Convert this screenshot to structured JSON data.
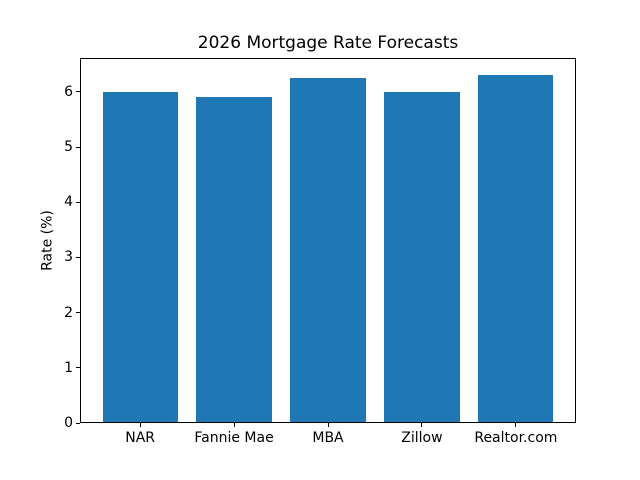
{
  "chart_data": {
    "type": "bar",
    "title": "2026 Mortgage Rate Forecasts",
    "xlabel": "",
    "ylabel": "Rate (%)",
    "categories": [
      "NAR",
      "Fannie Mae",
      "MBA",
      "Zillow",
      "Realtor.com"
    ],
    "values": [
      6.0,
      5.9,
      6.25,
      6.0,
      6.3
    ],
    "yticks": [
      0,
      1,
      2,
      3,
      4,
      5,
      6
    ],
    "ylim": [
      0,
      6.615
    ],
    "bar_color": "#1f77b4",
    "bar_width_fraction": 0.8,
    "grid": false,
    "legend_position": "none"
  }
}
